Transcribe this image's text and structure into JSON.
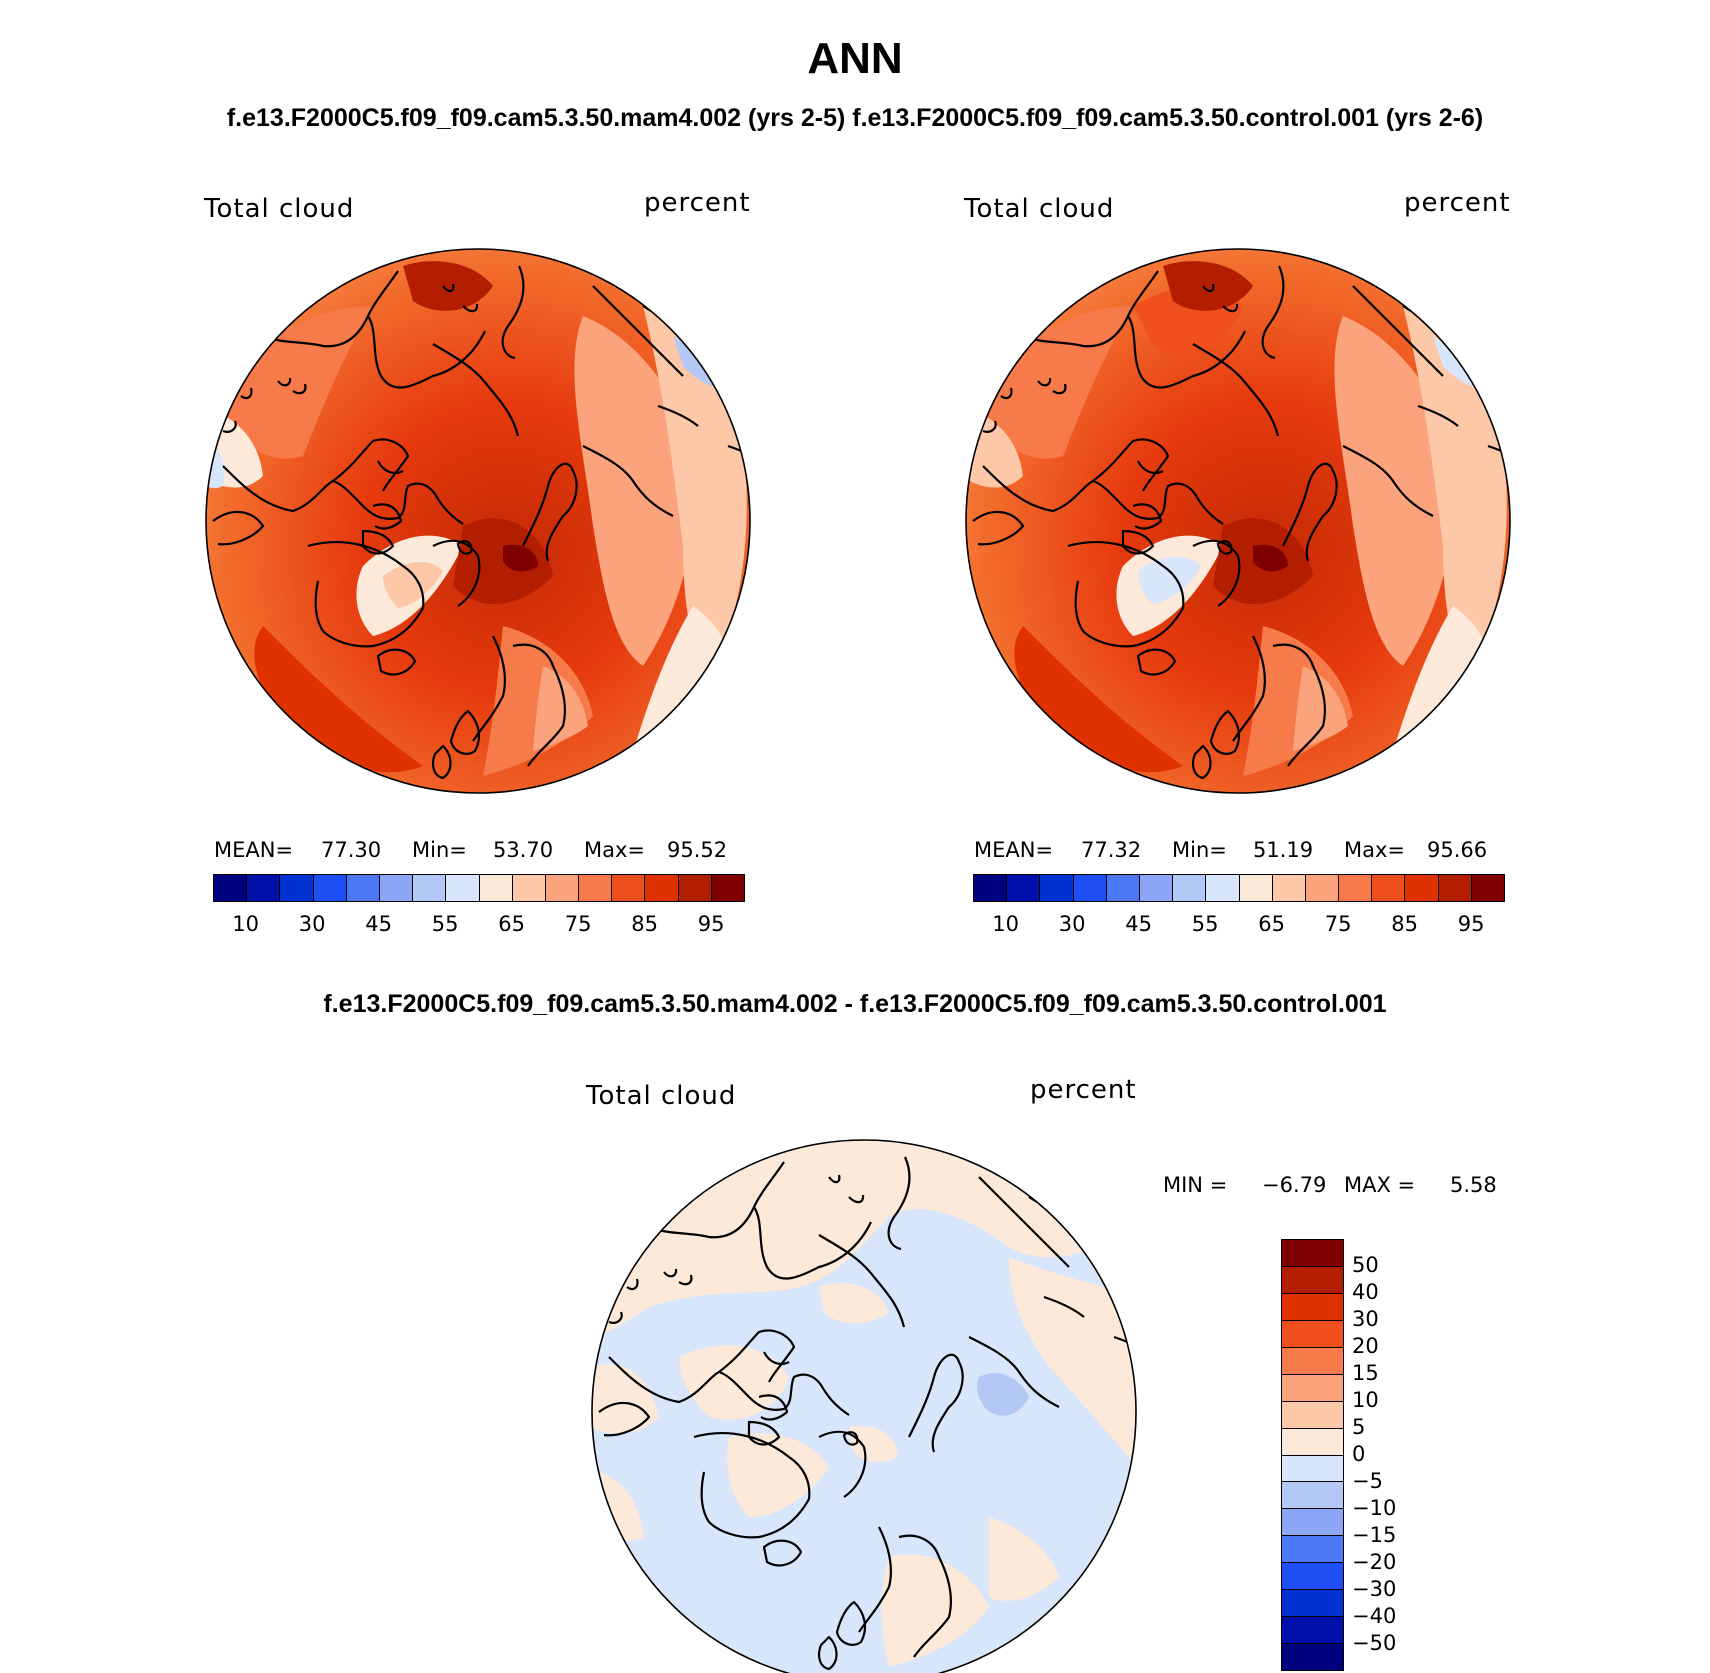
{
  "title": "ANN",
  "subtitle": "f.e13.F2000C5.f09_f09.cam5.3.50.mam4.002 (yrs 2-5) f.e13.F2000C5.f09_f09.cam5.3.50.control.001 (yrs 2-6)",
  "diff_title": "f.e13.F2000C5.f09_f09.cam5.3.50.mam4.002 - f.e13.F2000C5.f09_f09.cam5.3.50.control.001",
  "colors": {
    "abs_scale": [
      "#00007f",
      "#0010a8",
      "#0032d2",
      "#1e50f5",
      "#4b78f5",
      "#8ca5f5",
      "#b4c8f5",
      "#d7e6fa",
      "#fde9da",
      "#fcc8a8",
      "#fba37d",
      "#f77a4a",
      "#f0501e",
      "#e03200",
      "#b41e00",
      "#7f0000"
    ],
    "diff_scale": [
      "#00007f",
      "#0010a8",
      "#0032d2",
      "#1e50f5",
      "#4b78f5",
      "#8ca5f5",
      "#b4c8f5",
      "#d7e6fa",
      "#fde9da",
      "#fcc8a8",
      "#fba37d",
      "#f77a4a",
      "#f0501e",
      "#e03200",
      "#b41e00",
      "#7f0000"
    ]
  },
  "panels": [
    {
      "left_label": "Total cloud",
      "right_label": "percent",
      "stats": {
        "mean_label": "MEAN=",
        "mean": "77.30",
        "min_label": "Min=",
        "min": "53.70",
        "max_label": "Max=",
        "max": "95.52"
      },
      "ticks": [
        "10",
        "30",
        "45",
        "55",
        "65",
        "75",
        "85",
        "95"
      ]
    },
    {
      "left_label": "Total cloud",
      "right_label": "percent",
      "stats": {
        "mean_label": "MEAN=",
        "mean": "77.32",
        "min_label": "Min=",
        "min": "51.19",
        "max_label": "Max=",
        "max": "95.66"
      },
      "ticks": [
        "10",
        "30",
        "45",
        "55",
        "65",
        "75",
        "85",
        "95"
      ]
    }
  ],
  "diff_panel": {
    "left_label": "Total cloud",
    "right_label": "percent",
    "min_label": "MIN =",
    "min": "−6.79",
    "max_label": "MAX =",
    "max": "5.58",
    "ticks": [
      "50",
      "40",
      "30",
      "20",
      "15",
      "10",
      "5",
      "0",
      "−5",
      "−10",
      "−15",
      "−20",
      "−30",
      "−40",
      "−50"
    ]
  }
}
